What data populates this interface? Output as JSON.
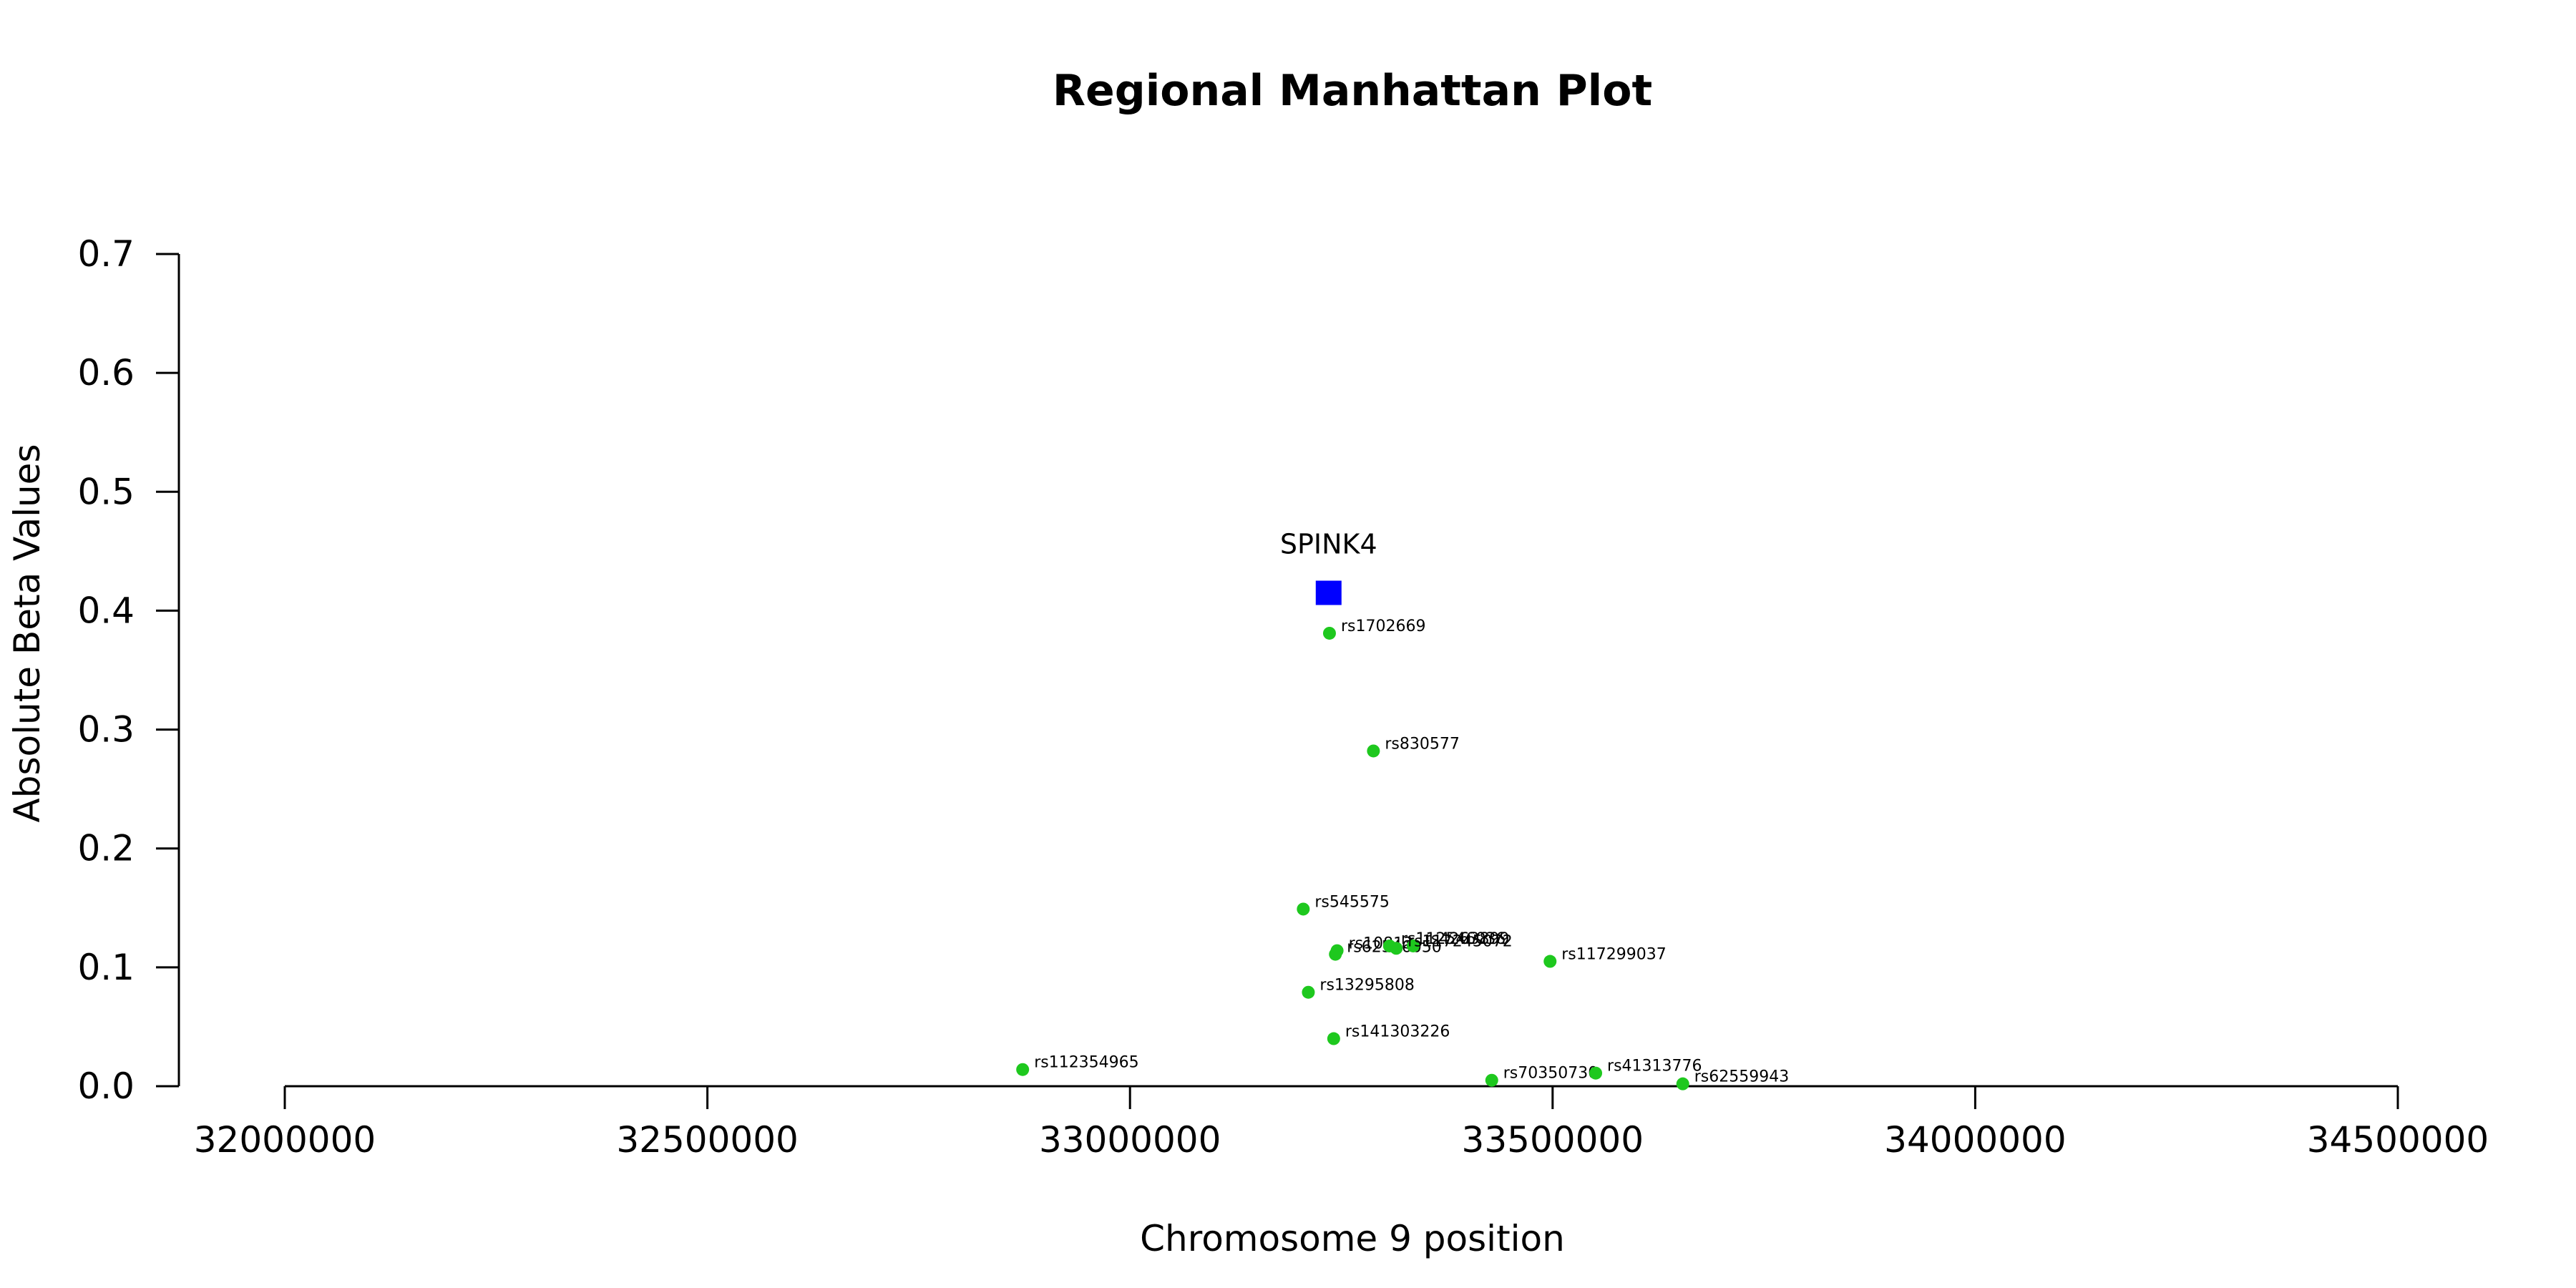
{
  "chart_data": {
    "type": "scatter",
    "title": "Regional Manhattan Plot",
    "xlabel": "Chromosome 9 position",
    "ylabel": "Absolute Beta Values",
    "xlim": [
      32000000,
      34500000
    ],
    "ylim": [
      0,
      0.7
    ],
    "x_ticks": [
      32000000,
      32500000,
      33000000,
      33500000,
      34000000,
      34500000
    ],
    "y_ticks": [
      0.0,
      0.1,
      0.2,
      0.3,
      0.4,
      0.5,
      0.6,
      0.7
    ],
    "x_tick_labels": [
      "32000000",
      "32500000",
      "33000000",
      "33500000",
      "34000000",
      "34500000"
    ],
    "y_tick_labels": [
      "0.0",
      "0.1",
      "0.2",
      "0.3",
      "0.4",
      "0.5",
      "0.6",
      "0.7"
    ],
    "grid": false,
    "colors": {
      "snp": "#1ec81e",
      "gene": "#0000ff"
    },
    "gene": {
      "label": "SPINK4",
      "x": 33235000,
      "y": 0.415,
      "marker": "square"
    },
    "points": [
      {
        "label": "rs1702669",
        "x": 33236000,
        "y": 0.381
      },
      {
        "label": "rs830577",
        "x": 33288000,
        "y": 0.282
      },
      {
        "label": "rs545575",
        "x": 33205000,
        "y": 0.149
      },
      {
        "label": "rs117299037",
        "x": 33497000,
        "y": 0.105
      },
      {
        "label": "rs62546050",
        "x": 33243000,
        "y": 0.111
      },
      {
        "label": "rs10813",
        "x": 33245000,
        "y": 0.114
      },
      {
        "label": "rs112546036",
        "x": 33307000,
        "y": 0.118
      },
      {
        "label": "rs4263899",
        "x": 33335000,
        "y": 0.118
      },
      {
        "label": "rs117245072",
        "x": 33315000,
        "y": 0.116
      },
      {
        "label": "rs13295808",
        "x": 33211000,
        "y": 0.079
      },
      {
        "label": "rs141303226",
        "x": 33241000,
        "y": 0.04
      },
      {
        "label": "rs112354965",
        "x": 32873000,
        "y": 0.014
      },
      {
        "label": "rs70350730",
        "x": 33428000,
        "y": 0.005
      },
      {
        "label": "rs41313776",
        "x": 33551000,
        "y": 0.011
      },
      {
        "label": "rs62559943",
        "x": 33654000,
        "y": 0.002
      }
    ]
  }
}
